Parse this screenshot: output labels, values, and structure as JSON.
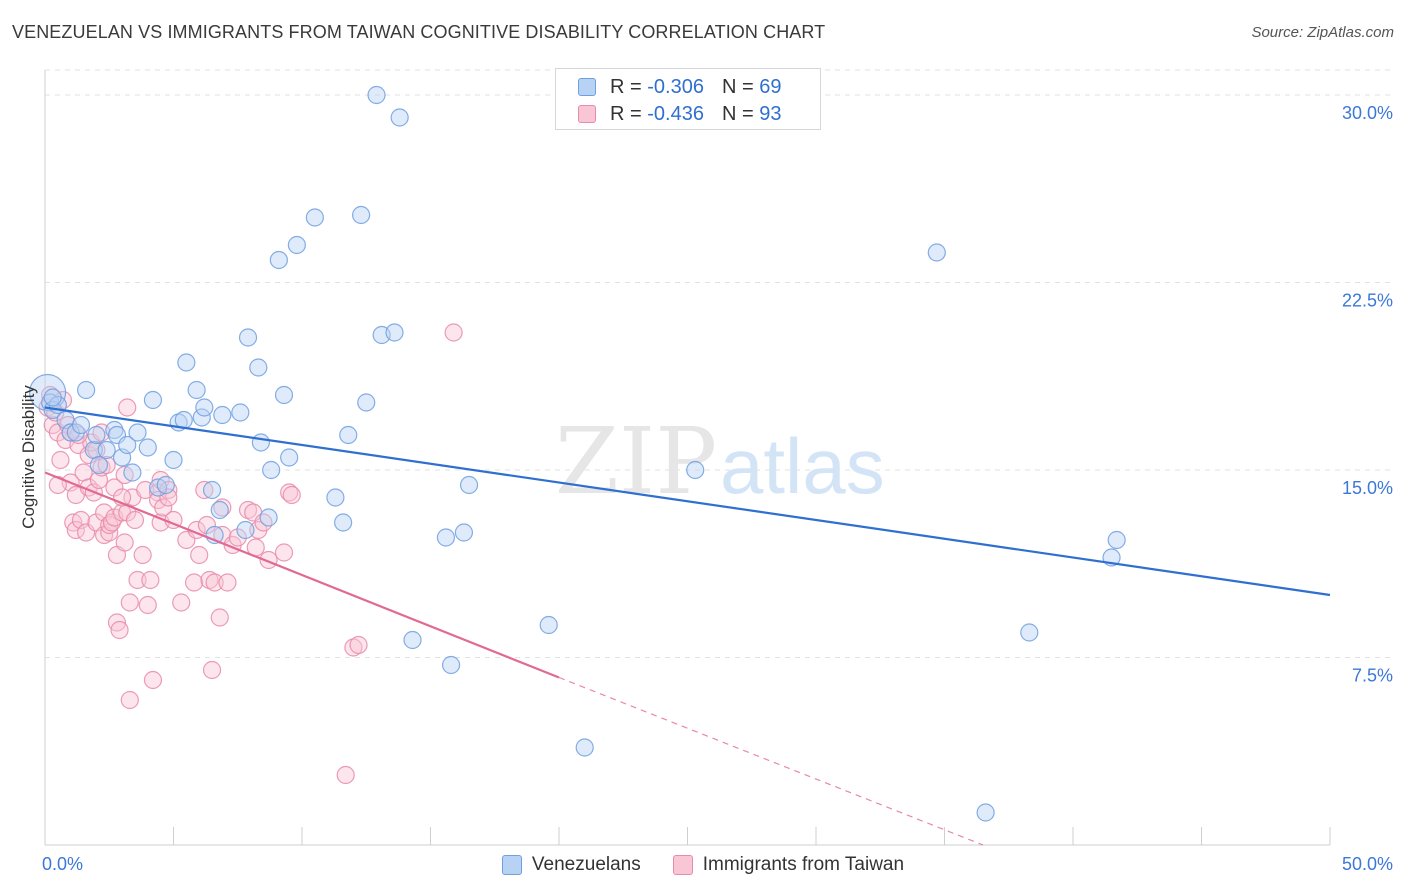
{
  "chart_data": {
    "type": "scatter",
    "title": "VENEZUELAN VS IMMIGRANTS FROM TAIWAN COGNITIVE DISABILITY CORRELATION CHART",
    "source": "Source: ZipAtlas.com",
    "watermark": {
      "zip": "ZIP",
      "atlas": "atlas"
    },
    "ylabel": "Cognitive Disability",
    "xlabel": "",
    "xlim": [
      0,
      50
    ],
    "ylim": [
      0,
      31
    ],
    "x_tick_labels": {
      "left": "0.0%",
      "right": "50.0%"
    },
    "y_ticks": [
      {
        "value": 7.5,
        "label": "7.5%"
      },
      {
        "value": 15.0,
        "label": "15.0%"
      },
      {
        "value": 22.5,
        "label": "22.5%"
      },
      {
        "value": 30.0,
        "label": "30.0%"
      }
    ],
    "legend": [
      {
        "r_label": "R =",
        "r_value": "-0.306",
        "n_label": "N =",
        "n_value": "69"
      },
      {
        "r_label": "R =",
        "r_value": "-0.436",
        "n_label": "N =",
        "n_value": "93"
      }
    ],
    "series": [
      {
        "name": "Venezuelans",
        "color": "#6e9fe0",
        "fill": "#b8d2f3",
        "line_color": "#2f6fd0",
        "trend": {
          "x0": 0,
          "y0": 17.5,
          "x1": 50,
          "y1": 10.0
        },
        "points": [
          [
            0.1,
            18.1
          ],
          [
            0.2,
            17.7
          ],
          [
            0.3,
            17.4
          ],
          [
            0.5,
            17.6
          ],
          [
            0.8,
            17.0
          ],
          [
            1.0,
            16.5
          ],
          [
            1.2,
            16.5
          ],
          [
            1.4,
            16.8
          ],
          [
            1.6,
            18.2
          ],
          [
            1.9,
            15.8
          ],
          [
            2.0,
            16.4
          ],
          [
            2.1,
            15.2
          ],
          [
            2.4,
            15.8
          ],
          [
            2.7,
            16.6
          ],
          [
            2.8,
            16.4
          ],
          [
            3.0,
            15.5
          ],
          [
            3.2,
            16.0
          ],
          [
            3.4,
            14.9
          ],
          [
            3.6,
            16.5
          ],
          [
            4.0,
            15.9
          ],
          [
            4.2,
            17.8
          ],
          [
            4.4,
            14.3
          ],
          [
            4.7,
            14.4
          ],
          [
            5.0,
            15.4
          ],
          [
            5.2,
            16.9
          ],
          [
            5.4,
            17.0
          ],
          [
            5.5,
            19.3
          ],
          [
            5.9,
            18.2
          ],
          [
            6.1,
            17.1
          ],
          [
            6.2,
            17.5
          ],
          [
            6.5,
            14.2
          ],
          [
            6.6,
            12.4
          ],
          [
            6.8,
            13.4
          ],
          [
            6.9,
            17.2
          ],
          [
            7.6,
            17.3
          ],
          [
            7.8,
            12.6
          ],
          [
            7.9,
            20.3
          ],
          [
            8.3,
            19.1
          ],
          [
            8.4,
            16.1
          ],
          [
            8.7,
            13.1
          ],
          [
            8.8,
            15.0
          ],
          [
            9.1,
            23.4
          ],
          [
            9.3,
            18.0
          ],
          [
            9.5,
            15.5
          ],
          [
            9.8,
            24.0
          ],
          [
            10.5,
            25.1
          ],
          [
            11.3,
            13.9
          ],
          [
            11.6,
            12.9
          ],
          [
            11.8,
            16.4
          ],
          [
            12.3,
            25.2
          ],
          [
            12.5,
            17.7
          ],
          [
            12.9,
            30.0
          ],
          [
            13.1,
            20.4
          ],
          [
            13.6,
            20.5
          ],
          [
            13.8,
            29.1
          ],
          [
            14.3,
            8.2
          ],
          [
            15.6,
            12.3
          ],
          [
            15.8,
            7.2
          ],
          [
            16.3,
            12.5
          ],
          [
            16.5,
            14.4
          ],
          [
            19.6,
            8.8
          ],
          [
            21.0,
            3.9
          ],
          [
            25.3,
            15.0
          ],
          [
            34.7,
            23.7
          ],
          [
            36.6,
            1.3
          ],
          [
            38.3,
            8.5
          ],
          [
            41.5,
            11.5
          ],
          [
            41.7,
            12.2
          ],
          [
            0.3,
            17.9
          ]
        ]
      },
      {
        "name": "Immigrants from Taiwan",
        "color": "#e98aaa",
        "fill": "#f8c6d5",
        "line_color": "#e26a92",
        "trend": {
          "x0": 0,
          "y0": 14.9,
          "x1": 20,
          "y1": 6.7
        },
        "trend_dashed": {
          "x0": 20,
          "y0": 6.7,
          "x1": 36.5,
          "y1": 0
        },
        "points": [
          [
            0.1,
            17.5
          ],
          [
            0.2,
            18.0
          ],
          [
            0.3,
            16.8
          ],
          [
            0.4,
            17.3
          ],
          [
            0.5,
            16.5
          ],
          [
            0.6,
            15.4
          ],
          [
            0.7,
            17.8
          ],
          [
            0.8,
            16.2
          ],
          [
            0.9,
            16.8
          ],
          [
            1.0,
            14.5
          ],
          [
            1.0,
            16.5
          ],
          [
            1.1,
            12.9
          ],
          [
            1.2,
            14.0
          ],
          [
            1.2,
            12.6
          ],
          [
            1.3,
            16.0
          ],
          [
            1.4,
            13.0
          ],
          [
            1.5,
            14.9
          ],
          [
            1.6,
            12.5
          ],
          [
            1.7,
            14.3
          ],
          [
            1.7,
            15.6
          ],
          [
            1.8,
            16.1
          ],
          [
            1.9,
            14.1
          ],
          [
            2.0,
            15.8
          ],
          [
            2.0,
            12.9
          ],
          [
            2.1,
            14.6
          ],
          [
            2.2,
            15.1
          ],
          [
            2.3,
            12.4
          ],
          [
            2.3,
            13.3
          ],
          [
            2.4,
            15.2
          ],
          [
            2.5,
            12.5
          ],
          [
            2.5,
            12.8
          ],
          [
            2.6,
            12.9
          ],
          [
            2.7,
            14.3
          ],
          [
            2.7,
            13.1
          ],
          [
            2.8,
            11.6
          ],
          [
            2.8,
            8.9
          ],
          [
            2.9,
            8.6
          ],
          [
            3.0,
            13.3
          ],
          [
            3.1,
            14.8
          ],
          [
            3.1,
            12.1
          ],
          [
            3.2,
            13.3
          ],
          [
            3.2,
            17.5
          ],
          [
            3.3,
            9.7
          ],
          [
            3.3,
            5.8
          ],
          [
            3.4,
            13.9
          ],
          [
            3.5,
            13.0
          ],
          [
            3.6,
            10.6
          ],
          [
            3.8,
            11.6
          ],
          [
            3.9,
            14.2
          ],
          [
            4.0,
            9.6
          ],
          [
            4.1,
            10.6
          ],
          [
            4.2,
            6.6
          ],
          [
            4.4,
            14.1
          ],
          [
            4.4,
            13.8
          ],
          [
            4.5,
            14.6
          ],
          [
            4.5,
            12.9
          ],
          [
            4.6,
            13.5
          ],
          [
            4.8,
            14.2
          ],
          [
            4.8,
            13.9
          ],
          [
            5.0,
            13.0
          ],
          [
            5.3,
            9.7
          ],
          [
            5.5,
            12.2
          ],
          [
            5.8,
            10.5
          ],
          [
            5.9,
            12.6
          ],
          [
            6.0,
            11.6
          ],
          [
            6.2,
            14.2
          ],
          [
            6.3,
            12.8
          ],
          [
            6.4,
            10.6
          ],
          [
            6.5,
            7.0
          ],
          [
            6.6,
            10.5
          ],
          [
            6.8,
            9.1
          ],
          [
            6.9,
            12.4
          ],
          [
            6.9,
            13.5
          ],
          [
            7.1,
            10.5
          ],
          [
            7.3,
            12.0
          ],
          [
            7.5,
            12.3
          ],
          [
            7.9,
            13.4
          ],
          [
            8.1,
            13.3
          ],
          [
            8.2,
            11.9
          ],
          [
            8.3,
            12.6
          ],
          [
            8.5,
            12.9
          ],
          [
            8.7,
            11.4
          ],
          [
            9.3,
            11.7
          ],
          [
            9.5,
            14.1
          ],
          [
            9.6,
            14.0
          ],
          [
            11.7,
            2.8
          ],
          [
            12.0,
            7.9
          ],
          [
            12.2,
            8.0
          ],
          [
            15.9,
            20.5
          ],
          [
            1.3,
            16.4
          ],
          [
            0.5,
            14.4
          ],
          [
            2.2,
            16.5
          ],
          [
            3.0,
            13.9
          ]
        ]
      }
    ]
  }
}
